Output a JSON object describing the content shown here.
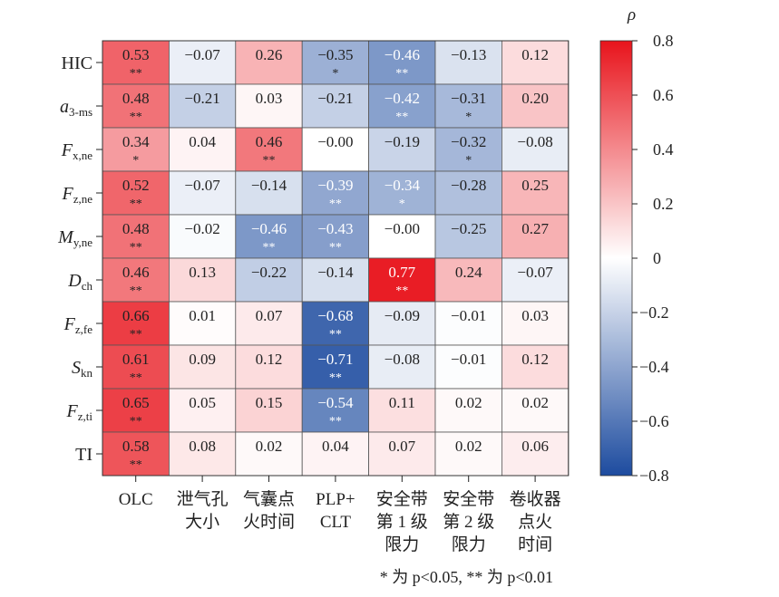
{
  "chart_data": {
    "type": "heatmap",
    "title": "",
    "rows": [
      {
        "main": "HIC",
        "sub": "",
        "italic": false
      },
      {
        "main": "a",
        "sub": "3-ms",
        "italic": true
      },
      {
        "main": "F",
        "sub": "x,ne",
        "italic": true
      },
      {
        "main": "F",
        "sub": "z,ne",
        "italic": true
      },
      {
        "main": "M",
        "sub": "y,ne",
        "italic": true
      },
      {
        "main": "D",
        "sub": "ch",
        "italic": true
      },
      {
        "main": "F",
        "sub": "z,fe",
        "italic": true
      },
      {
        "main": "S",
        "sub": "kn",
        "italic": true
      },
      {
        "main": "F",
        "sub": "z,ti",
        "italic": true
      },
      {
        "main": "TI",
        "sub": "",
        "italic": false
      }
    ],
    "columns": [
      [
        "OLC"
      ],
      [
        "泄气孔",
        "大小"
      ],
      [
        "气囊点",
        "火时间"
      ],
      [
        "PLP+",
        "CLT"
      ],
      [
        "安全带",
        "第 1 级",
        "限力"
      ],
      [
        "安全带",
        "第 2 级",
        "限力"
      ],
      [
        "卷收器",
        "点火",
        "时间"
      ]
    ],
    "values": [
      [
        "0.53",
        "-0.07",
        "0.26",
        "-0.35",
        "-0.46",
        "-0.13",
        "0.12"
      ],
      [
        "0.48",
        "-0.21",
        "0.03",
        "-0.21",
        "-0.42",
        "-0.31",
        "0.20"
      ],
      [
        "0.34",
        "0.04",
        "0.46",
        "-0.00",
        "-0.19",
        "-0.32",
        "-0.08"
      ],
      [
        "0.52",
        "-0.07",
        "-0.14",
        "-0.39",
        "-0.34",
        "-0.28",
        "0.25"
      ],
      [
        "0.48",
        "-0.02",
        "-0.46",
        "-0.43",
        "-0.00",
        "-0.25",
        "0.27"
      ],
      [
        "0.46",
        "0.13",
        "-0.22",
        "-0.14",
        "0.77",
        "0.24",
        "-0.07"
      ],
      [
        "0.66",
        "0.01",
        "0.07",
        "-0.68",
        "-0.09",
        "-0.01",
        "0.03"
      ],
      [
        "0.61",
        "0.09",
        "0.12",
        "-0.71",
        "-0.08",
        "-0.01",
        "0.12"
      ],
      [
        "0.65",
        "0.05",
        "0.15",
        "-0.54",
        "0.11",
        "0.02",
        "0.02"
      ],
      [
        "0.58",
        "0.08",
        "0.02",
        "0.04",
        "0.07",
        "0.02",
        "0.06"
      ]
    ],
    "significance": [
      [
        "**",
        "",
        "",
        "*",
        "**",
        "",
        ""
      ],
      [
        "**",
        "",
        "",
        "",
        "**",
        "*",
        ""
      ],
      [
        "*",
        "",
        "**",
        "",
        "",
        "*",
        ""
      ],
      [
        "**",
        "",
        "",
        "**",
        "*",
        "",
        ""
      ],
      [
        "**",
        "",
        "**",
        "**",
        "",
        "",
        ""
      ],
      [
        "**",
        "",
        "",
        "",
        "**",
        "",
        ""
      ],
      [
        "**",
        "",
        "",
        "**",
        "",
        "",
        ""
      ],
      [
        "**",
        "",
        "",
        "**",
        "",
        "",
        ""
      ],
      [
        "**",
        "",
        "",
        "**",
        "",
        "",
        ""
      ],
      [
        "**",
        "",
        "",
        "",
        "",
        "",
        ""
      ]
    ],
    "colorbar": {
      "label": "ρ",
      "range": [
        -0.8,
        0.8
      ],
      "ticks": [
        "0.8",
        "0.6",
        "0.4",
        "0.2",
        "0",
        "−0.2",
        "−0.4",
        "−0.6",
        "−0.8"
      ],
      "tick_values": [
        0.8,
        0.6,
        0.4,
        0.2,
        0,
        -0.2,
        -0.4,
        -0.6,
        -0.8
      ],
      "color_low": "#1d4b9f",
      "color_mid": "#ffffff",
      "color_high": "#e8141c"
    },
    "footnote": "* 为 p<0.05, ** 为 p<0.01"
  }
}
